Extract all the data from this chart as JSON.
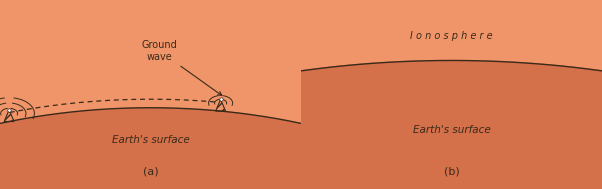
{
  "bg_color": "#f0956a",
  "earth_color": "#d4704a",
  "ionosphere_color": "#c8896a",
  "line_color": "#3a2a1a",
  "text_color": "#1a1010",
  "title_a": "(a)",
  "title_b": "(b)",
  "earth_label": "Earth's surface",
  "ionosphere_label": "I o n o s p h e r e",
  "ground_wave_label": "Ground\nwave"
}
